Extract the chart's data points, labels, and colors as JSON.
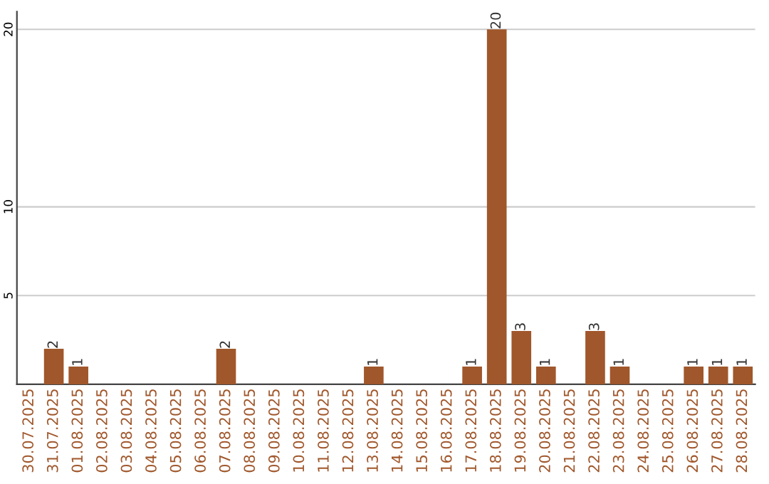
{
  "chart_data": {
    "type": "bar",
    "categories": [
      "30.07.2025",
      "31.07.2025",
      "01.08.2025",
      "02.08.2025",
      "03.08.2025",
      "04.08.2025",
      "05.08.2025",
      "06.08.2025",
      "07.08.2025",
      "08.08.2025",
      "09.08.2025",
      "10.08.2025",
      "11.08.2025",
      "12.08.2025",
      "13.08.2025",
      "14.08.2025",
      "15.08.2025",
      "16.08.2025",
      "17.08.2025",
      "18.08.2025",
      "19.08.2025",
      "20.08.2025",
      "21.08.2025",
      "22.08.2025",
      "23.08.2025",
      "24.08.2025",
      "25.08.2025",
      "26.08.2025",
      "27.08.2025",
      "28.08.2025"
    ],
    "values": [
      0,
      2,
      1,
      0,
      0,
      0,
      0,
      0,
      2,
      0,
      0,
      0,
      0,
      0,
      1,
      0,
      0,
      0,
      1,
      20,
      3,
      1,
      0,
      3,
      1,
      0,
      0,
      1,
      1,
      1
    ],
    "value_labels": [
      null,
      "2",
      "1",
      null,
      null,
      null,
      null,
      null,
      "2",
      null,
      null,
      null,
      null,
      null,
      "1",
      null,
      null,
      null,
      "1",
      "20",
      "3",
      "1",
      null,
      "3",
      "1",
      null,
      null,
      "1",
      "1",
      "1"
    ],
    "color": "#a0572b",
    "ylim": [
      0,
      21
    ],
    "yticks": [
      5,
      10,
      20
    ],
    "grid": "y"
  }
}
